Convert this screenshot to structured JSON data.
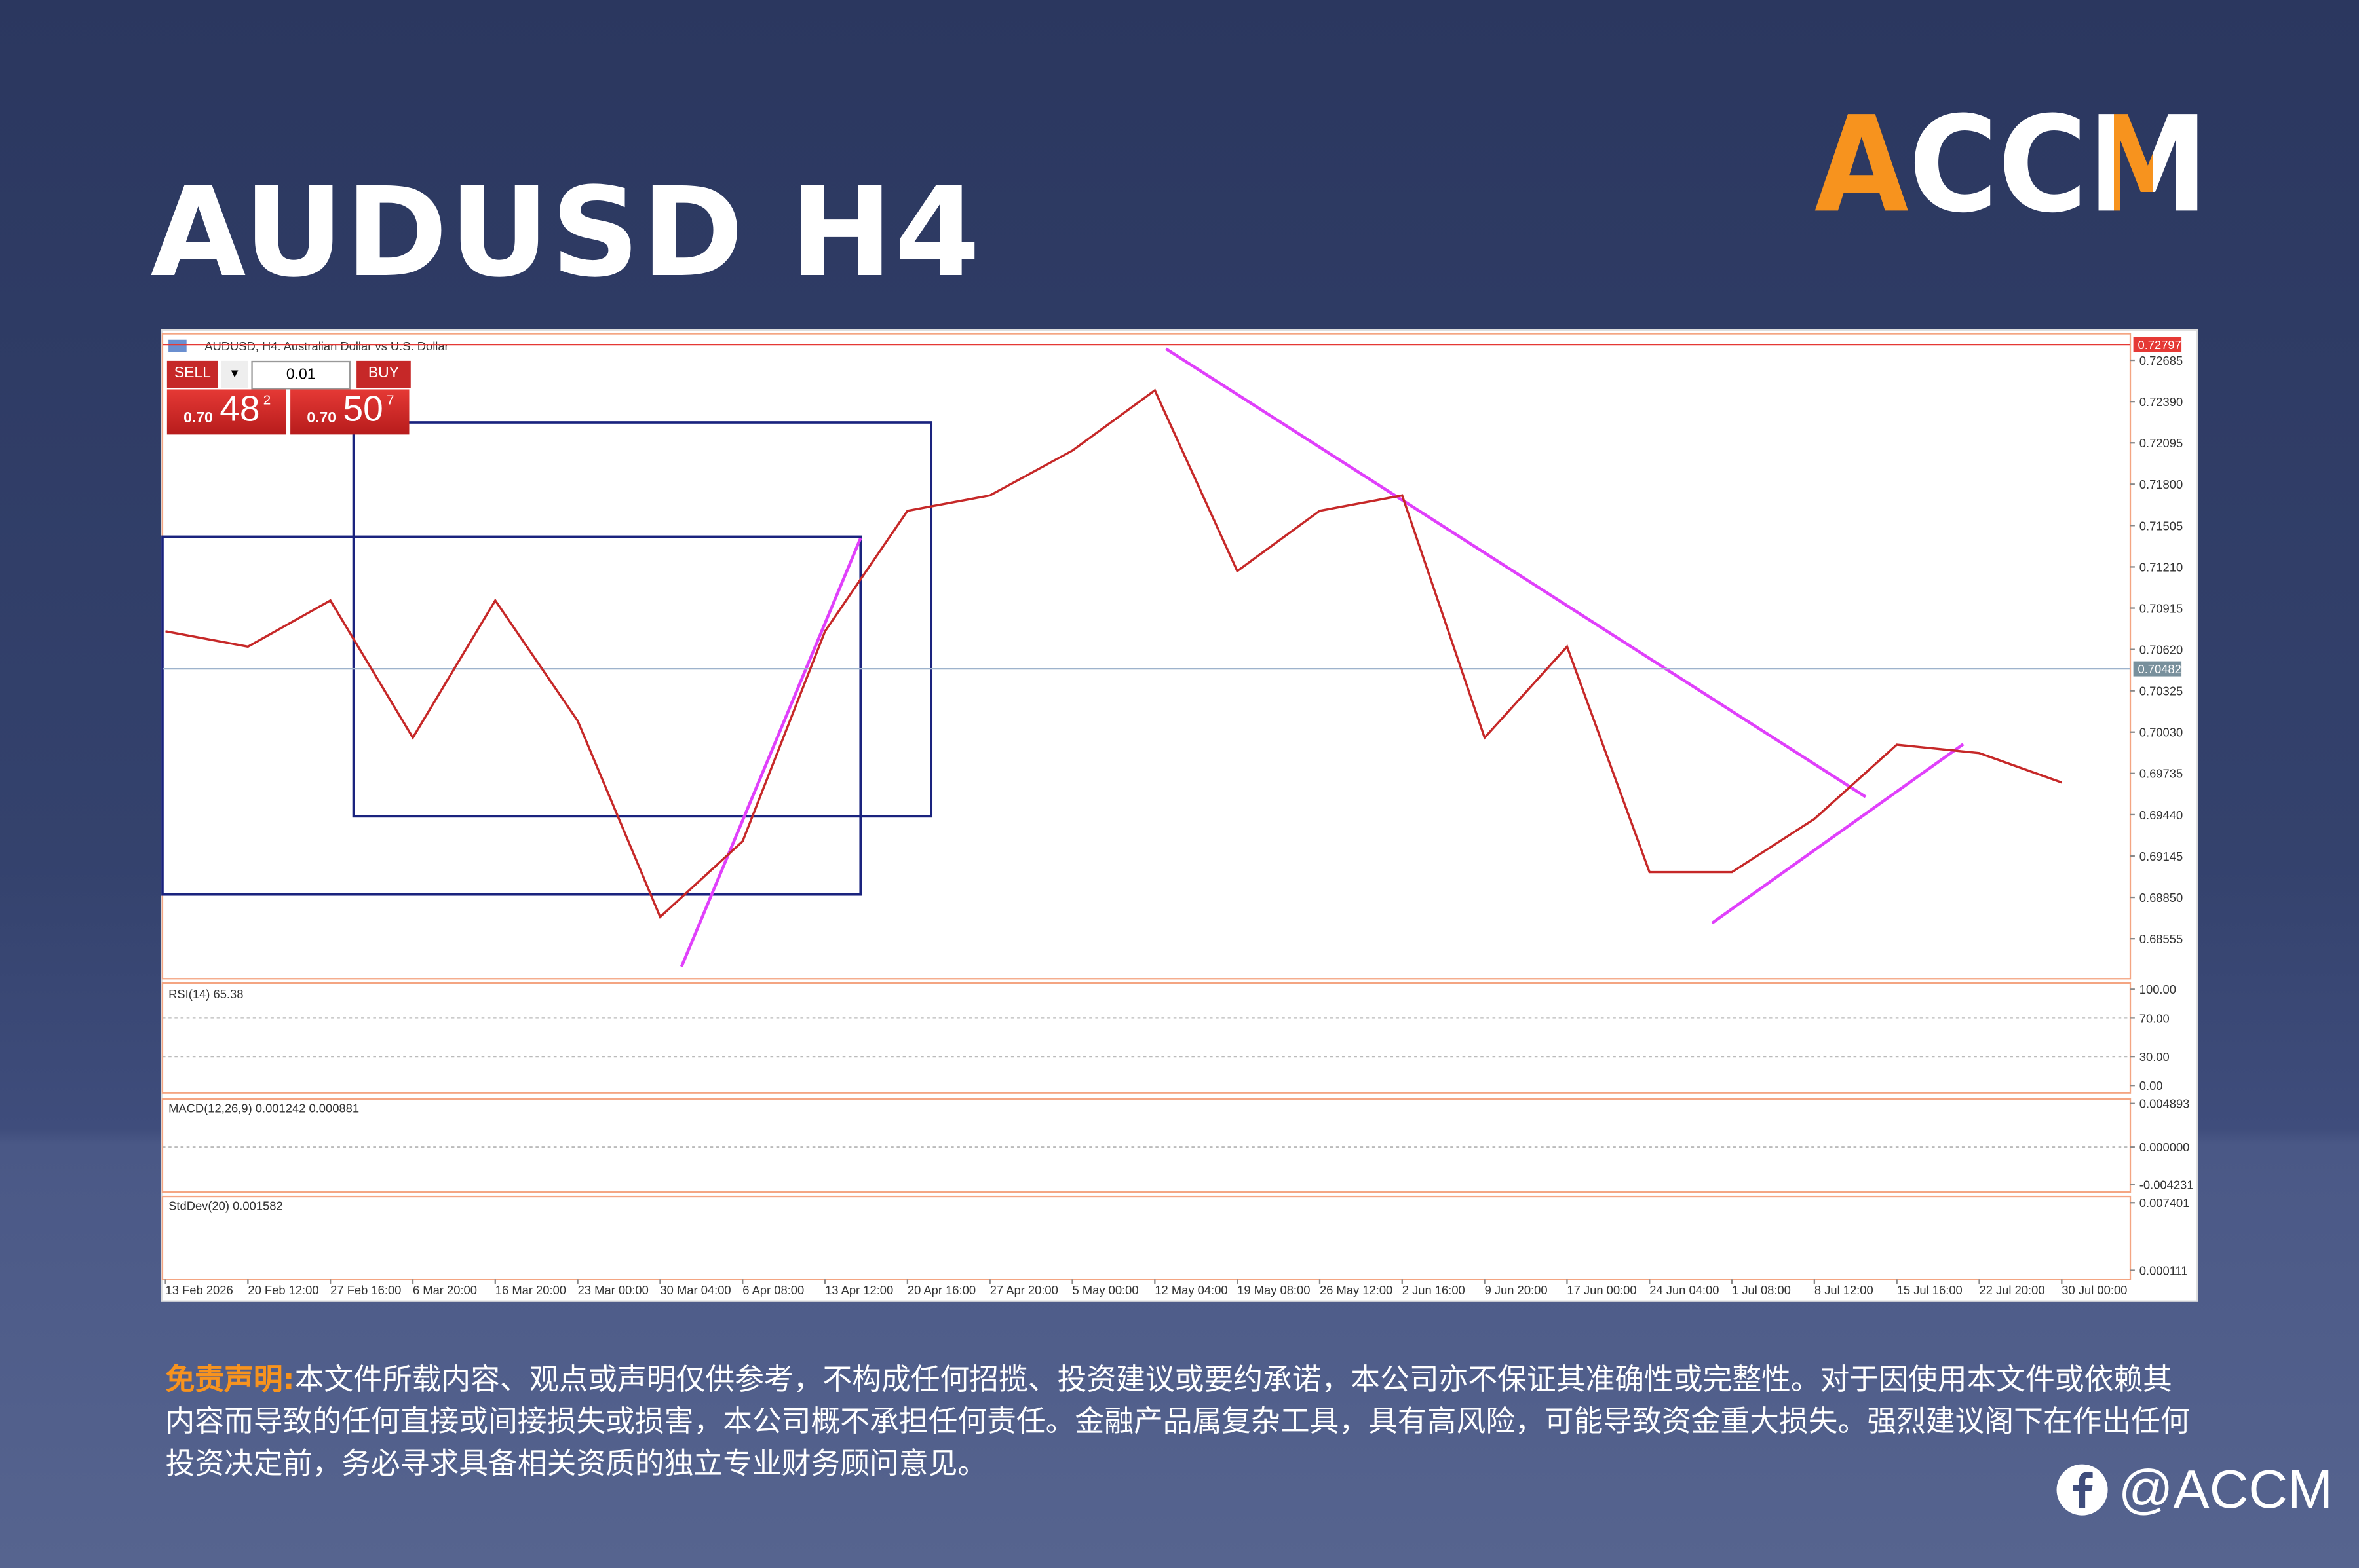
{
  "header": {
    "title": "AUDUSD H4",
    "logo": "ACCM"
  },
  "chart_header": "AUDUSD, H4: Australian Dollar vs U.S. Dollar",
  "trade_panel": {
    "sell": "SELL",
    "buy": "BUY",
    "lots": "0.01",
    "sell_price": {
      "prefix": "0.70",
      "main": "48",
      "fraction": "2"
    },
    "buy_price": {
      "prefix": "0.70",
      "main": "50",
      "fraction": "7"
    }
  },
  "chart_data": {
    "type": "line",
    "color": "#c62828",
    "categories": [
      "13 Feb 2026",
      "20 Feb 12:00",
      "27 Feb 16:00",
      "6 Mar 20:00",
      "16 Mar 20:00",
      "23 Mar 00:00",
      "30 Mar 04:00",
      "6 Apr 08:00",
      "13 Apr 12:00",
      "20 Apr 16:00",
      "27 Apr 20:00",
      "5 May 00:00",
      "12 May 04:00",
      "19 May 08:00",
      "26 May 12:00",
      "2 Jun 16:00",
      "9 Jun 20:00",
      "17 Jun 00:00",
      "24 Jun 04:00",
      "1 Jul 08:00",
      "8 Jul 12:00",
      "15 Jul 16:00",
      "22 Jul 20:00",
      "30 Jul 00:00"
    ],
    "values": [
      0.7075,
      0.7064,
      0.7097,
      0.6999,
      0.7097,
      0.7011,
      0.6871,
      0.6925,
      0.7075,
      0.7161,
      0.7172,
      0.7204,
      0.7247,
      0.7118,
      0.7161,
      0.7172,
      0.6999,
      0.7064,
      0.6903,
      0.6903,
      0.6941,
      0.6994,
      0.6988,
      0.6967
    ],
    "ylim": [
      0.6828,
      0.7281
    ],
    "yticks": [
      0.72685,
      {
        "value": 0.7239,
        "label": "0.72390"
      },
      0.72095,
      {
        "value": 0.718,
        "label": "0.71800"
      },
      0.71505,
      {
        "value": 0.7121,
        "label": "0.71210"
      },
      0.70915,
      {
        "value": 0.7062,
        "label": "0.70620"
      },
      0.70325,
      {
        "value": 0.7003,
        "label": "0.70030"
      },
      0.69735,
      {
        "value": 0.6944,
        "label": "0.69440"
      },
      0.69145,
      {
        "value": 0.6885,
        "label": "0.68850"
      },
      0.68555
    ],
    "current_price": 0.70482,
    "high_line": 0.72797,
    "grid": false
  },
  "indicators": [
    {
      "label": "RSI(14) 65.38",
      "lim": [
        0,
        100
      ],
      "ticks": [
        {
          "value": 100,
          "label": "100.00"
        },
        {
          "value": 70,
          "label": "70.00"
        },
        {
          "value": 30,
          "label": "30.00"
        },
        {
          "value": 0,
          "label": "0.00"
        }
      ]
    },
    {
      "label": "MACD(12,26,9) 0.001242 0.000881",
      "lim": [
        -0.004231,
        0.004893
      ],
      "ticks": [
        0.004893,
        {
          "value": 0,
          "label": "0.000000"
        },
        -0.004231
      ]
    },
    {
      "label": "StdDev(20) 0.001582",
      "lim": [
        0.000111,
        0.007401
      ],
      "ticks": [
        0.007401,
        0.000111
      ]
    }
  ],
  "disclaimer": {
    "label": "免责声明:",
    "text": "本文件所载内容、观点或声明仅供参考，不构成任何招揽、投资建议或要约承诺，本公司亦不保证其准确性或完整性。对于因使用本文件或依赖其内容而导致的任何直接或间接损失或损害，本公司概不承担任何责任。金融产品属复杂工具，具有高风险，可能导致资金重大损失。强烈建议阁下在作出任何投资决定前，务必寻求具备相关资质的独立专业财务顾问意见。"
  },
  "social": "@ACCM"
}
